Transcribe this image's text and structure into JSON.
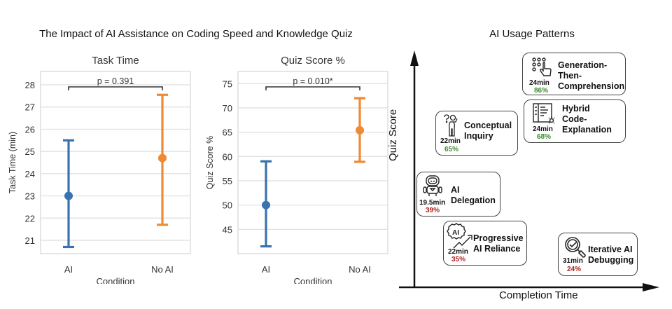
{
  "figure": {
    "suptitle": "The Impact of AI Assistance on Coding Speed and Knowledge Quiz",
    "colors": {
      "ai": "#3a72b0",
      "no_ai": "#ee8a34",
      "grid": "#dddddd",
      "good": "#3a8a2a",
      "bad": "#b01c1c"
    }
  },
  "chart_data": [
    {
      "type": "errorbar",
      "title": "Task Time",
      "xlabel": "Condition",
      "ylabel": "Task Time (min)",
      "categories": [
        "AI",
        "No AI"
      ],
      "yticks": [
        21,
        22,
        23,
        24,
        25,
        26,
        27,
        28
      ],
      "ylim": [
        20.4,
        28.6
      ],
      "grid": true,
      "series": [
        {
          "name": "AI",
          "mean": 23.0,
          "lower": 20.7,
          "upper": 25.5,
          "color": "#3a72b0"
        },
        {
          "name": "No AI",
          "mean": 24.7,
          "lower": 21.7,
          "upper": 27.55,
          "color": "#ee8a34"
        }
      ],
      "annotation": "p = 0.391"
    },
    {
      "type": "errorbar",
      "title": "Quiz Score %",
      "xlabel": "Condition",
      "ylabel": "Quiz Score %",
      "categories": [
        "AI",
        "No AI"
      ],
      "yticks": [
        45,
        50,
        55,
        60,
        65,
        70,
        75
      ],
      "ylim": [
        40,
        77.5
      ],
      "grid": true,
      "series": [
        {
          "name": "AI",
          "mean": 50.0,
          "lower": 41.5,
          "upper": 59.0,
          "color": "#3a72b0"
        },
        {
          "name": "No AI",
          "mean": 65.4,
          "lower": 58.9,
          "upper": 72.0,
          "color": "#ee8a34"
        }
      ],
      "annotation": "p = 0.010*"
    }
  ],
  "diagram": {
    "title": "AI Usage Patterns",
    "x_axis_label": "Completion Time",
    "y_axis_label": "Quiz Score",
    "patterns": [
      {
        "name": "Generation-Then-Comprehension",
        "lines": [
          "Generation-",
          "Then-",
          "Comprehension"
        ],
        "time": "24min",
        "score": "86%",
        "level": "good",
        "icon": "touch-grid-icon"
      },
      {
        "name": "Hybrid Code-Explanation",
        "lines": [
          "Hybrid",
          "Code-",
          "Explanation"
        ],
        "time": "24min",
        "score": "68%",
        "level": "good",
        "icon": "code-document-icon"
      },
      {
        "name": "Conceptual Inquiry",
        "lines": [
          "Conceptual",
          "Inquiry"
        ],
        "time": "22min",
        "score": "65%",
        "level": "good",
        "icon": "thinking-person-icon"
      },
      {
        "name": "AI Delegation",
        "lines": [
          "AI",
          "Delegation"
        ],
        "time": "19.5min",
        "score": "39%",
        "level": "bad",
        "icon": "robot-icon"
      },
      {
        "name": "Progressive AI Reliance",
        "lines": [
          "Progressive",
          "AI Reliance"
        ],
        "time": "22min",
        "score": "35%",
        "level": "bad",
        "icon": "ai-gear-trend-icon"
      },
      {
        "name": "Iterative AI Debugging",
        "lines": [
          "Iterative AI",
          "Debugging"
        ],
        "time": "31min",
        "score": "24%",
        "level": "bad",
        "icon": "magnifier-check-icon"
      }
    ]
  }
}
